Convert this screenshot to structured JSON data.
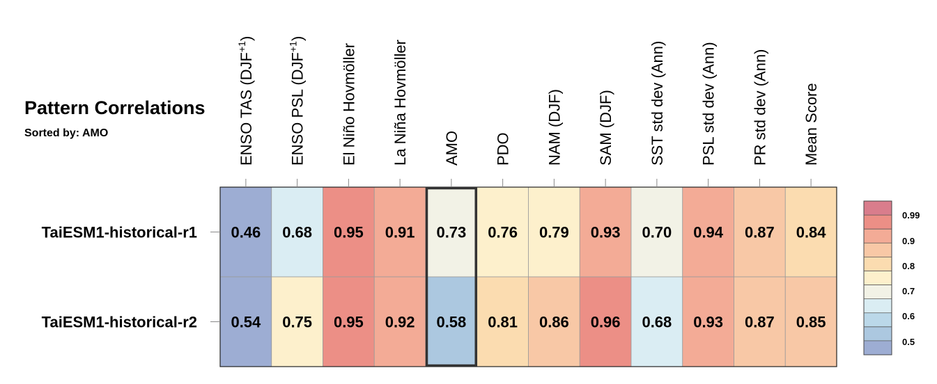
{
  "header": {
    "title": "Pattern Correlations",
    "subtitle": "Sorted by: AMO"
  },
  "chart_data": {
    "type": "heatmap",
    "title": "Pattern Correlations",
    "subtitle": "Sorted by: AMO",
    "columns": [
      {
        "text": "ENSO TAS (DJF",
        "sup": "+1",
        "tail": ")"
      },
      {
        "text": "ENSO PSL (DJF",
        "sup": "+1",
        "tail": ")"
      },
      {
        "text": "El Niño Hovmöller"
      },
      {
        "text": "La Niña Hovmöller"
      },
      {
        "text": "AMO"
      },
      {
        "text": "PDO"
      },
      {
        "text": "NAM (DJF)"
      },
      {
        "text": "SAM (DJF)"
      },
      {
        "text": "SST std dev (Ann)"
      },
      {
        "text": "PSL std dev (Ann)"
      },
      {
        "text": "PR std dev (Ann)"
      },
      {
        "text": "Mean Score"
      }
    ],
    "rows": [
      "TaiESM1-historical-r1",
      "TaiESM1-historical-r2"
    ],
    "values": [
      [
        "0.46",
        "0.68",
        "0.95",
        "0.91",
        "0.73",
        "0.76",
        "0.79",
        "0.93",
        "0.70",
        "0.94",
        "0.87",
        "0.84"
      ],
      [
        "0.54",
        "0.75",
        "0.95",
        "0.92",
        "0.58",
        "0.81",
        "0.86",
        "0.96",
        "0.68",
        "0.93",
        "0.87",
        "0.85"
      ]
    ],
    "highlighted_column": "AMO",
    "colorbar": {
      "colors": [
        "#9dadd3",
        "#acc8e0",
        "#bbd8e9",
        "#daedf3",
        "#f2f2e6",
        "#fdf0cc",
        "#fbdcb0",
        "#f8c8a6",
        "#f3ab96",
        "#ec8f86",
        "#d97d8c"
      ],
      "tick_labels": [
        "0.99",
        "0.9",
        "0.8",
        "0.7",
        "0.6",
        "0.5"
      ],
      "tick_values": [
        0.99,
        0.9,
        0.8,
        0.7,
        0.6,
        0.5
      ]
    }
  }
}
